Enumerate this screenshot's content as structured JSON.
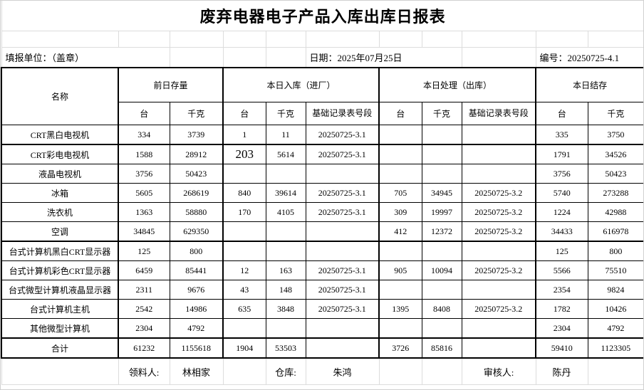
{
  "title": "废弃电器电子产品入库出库日报表",
  "info": {
    "unit": "填报单位：（盖章）",
    "date": "日期：2025年07月25日",
    "code": "编号：20250725-4.1"
  },
  "table": {
    "col_groups": {
      "name": "名称",
      "prev_stock": "前日存量",
      "today_in": "本日入库（进厂）",
      "today_out": "本日处理（出库）",
      "today_balance": "本日结存"
    },
    "sub_headers": {
      "units": "台",
      "kg": "千克",
      "record": "基础记录表号段"
    },
    "rows": [
      {
        "name": "CRT黑白电视机",
        "cells": [
          "334",
          "3739",
          "1",
          "11",
          "20250725-3.1",
          "",
          "",
          "",
          "335",
          "3750"
        ]
      },
      {
        "name": "CRT彩电电视机",
        "cells": [
          "1588",
          "28912",
          "203",
          "5614",
          "20250725-3.1",
          "",
          "",
          "",
          "1791",
          "34526"
        ],
        "big_col": 2
      },
      {
        "name": "液晶电视机",
        "cells": [
          "3756",
          "50423",
          "",
          "",
          "",
          "",
          "",
          "",
          "3756",
          "50423"
        ]
      },
      {
        "name": "冰箱",
        "cells": [
          "5605",
          "268619",
          "840",
          "39614",
          "20250725-3.1",
          "705",
          "34945",
          "20250725-3.2",
          "5740",
          "273288"
        ]
      },
      {
        "name": "洗衣机",
        "cells": [
          "1363",
          "58880",
          "170",
          "4105",
          "20250725-3.1",
          "309",
          "19997",
          "20250725-3.2",
          "1224",
          "42988"
        ]
      },
      {
        "name": "空调",
        "cells": [
          "34845",
          "629350",
          "",
          "",
          "",
          "412",
          "12372",
          "20250725-3.2",
          "34433",
          "616978"
        ]
      },
      {
        "name": "台式计算机黑白CRT显示器",
        "cells": [
          "125",
          "800",
          "",
          "",
          "",
          "",
          "",
          "",
          "125",
          "800"
        ]
      },
      {
        "name": "台式计算机彩色CRT显示器",
        "cells": [
          "6459",
          "85441",
          "12",
          "163",
          "20250725-3.1",
          "905",
          "10094",
          "20250725-3.2",
          "5566",
          "75510"
        ]
      },
      {
        "name": "台式微型计算机液晶显示器",
        "cells": [
          "2311",
          "9676",
          "43",
          "148",
          "20250725-3.1",
          "",
          "",
          "",
          "2354",
          "9824"
        ]
      },
      {
        "name": "台式计算机主机",
        "cells": [
          "2542",
          "14986",
          "635",
          "3848",
          "20250725-3.1",
          "1395",
          "8408",
          "20250725-3.2",
          "1782",
          "10426"
        ]
      },
      {
        "name": "其他微型计算机",
        "cells": [
          "2304",
          "4792",
          "",
          "",
          "",
          "",
          "",
          "",
          "2304",
          "4792"
        ]
      },
      {
        "name": "合计",
        "cells": [
          "61232",
          "1155618",
          "1904",
          "53503",
          "",
          "3726",
          "85816",
          "",
          "59410",
          "1123305"
        ],
        "is_total": true
      }
    ]
  },
  "footer": {
    "cells": [
      "",
      "领料人:",
      "林相家",
      "",
      "仓库:",
      "朱鸿",
      "",
      "",
      "审核人:",
      "陈丹",
      ""
    ]
  },
  "colors": {
    "table_border": "#000000",
    "grid_line": "#dcdcdc",
    "background": "#ffffff",
    "text": "#000000"
  }
}
